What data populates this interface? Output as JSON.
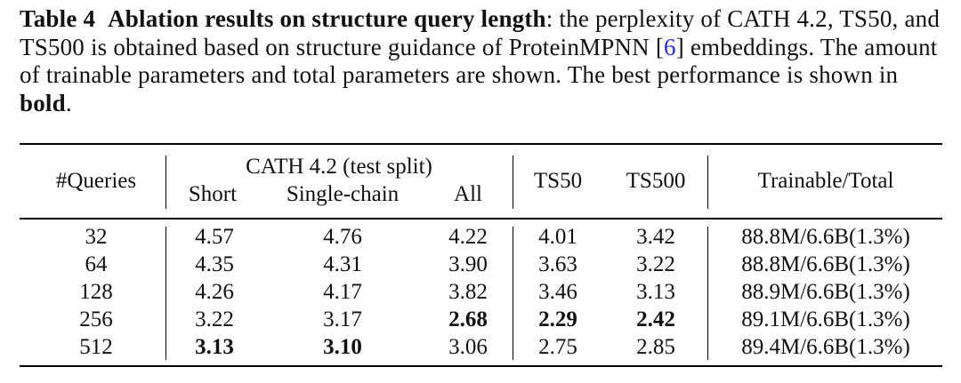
{
  "caption": {
    "label": "Table 4",
    "bold_title": "Ablation results on structure query length",
    "text_1": ": the perplexity of CATH 4.2, TS50, and TS500 is obtained based on structure guidance of ProteinMPNN [",
    "cite": "6",
    "text_2": "] embeddings. The amount of trainable parameters and total parameters are shown. The best performance is shown in ",
    "bold_word": "bold",
    "text_3": "."
  },
  "table": {
    "headers": {
      "queries": "#Queries",
      "cath_group": "CATH 4.2 (test split)",
      "short": "Short",
      "single_chain": "Single-chain",
      "all": "All",
      "ts50": "TS50",
      "ts500": "TS500",
      "trainable_total": "Trainable/Total"
    },
    "rows": [
      [
        "32",
        "4.57",
        "4.76",
        "4.22",
        "4.01",
        "3.42",
        "88.8M/6.6B(1.3%)"
      ],
      [
        "64",
        "4.35",
        "4.31",
        "3.90",
        "3.63",
        "3.22",
        "88.8M/6.6B(1.3%)"
      ],
      [
        "128",
        "4.26",
        "4.17",
        "3.82",
        "3.46",
        "3.13",
        "88.9M/6.6B(1.3%)"
      ],
      [
        "256",
        "3.22",
        "3.17",
        "2.68",
        "2.29",
        "2.42",
        "89.1M/6.6B(1.3%)"
      ],
      [
        "512",
        "3.13",
        "3.10",
        "3.06",
        "2.75",
        "2.85",
        "89.4M/6.6B(1.3%)"
      ]
    ],
    "bold_cells": [
      [
        3,
        3
      ],
      [
        3,
        4
      ],
      [
        3,
        5
      ],
      [
        4,
        1
      ],
      [
        4,
        2
      ]
    ]
  }
}
